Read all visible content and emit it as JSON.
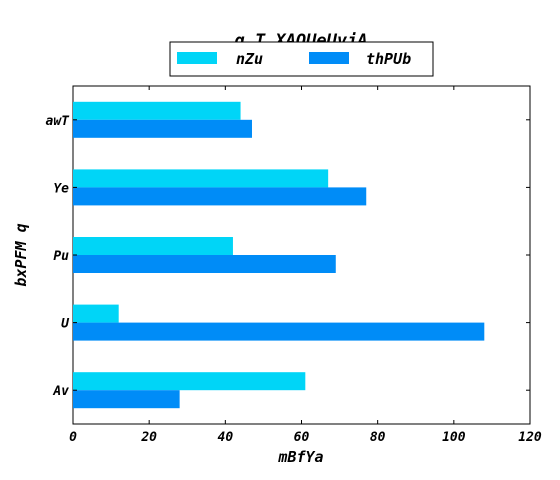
{
  "chart_data": {
    "type": "bar",
    "orientation": "horizontal",
    "title": "q_T  XAQUeUvjA",
    "xlabel": "mBfYa",
    "ylabel": "bxPFM q",
    "categories": [
      "Av",
      "U",
      "Pu",
      "Ye",
      "awT"
    ],
    "series": [
      {
        "name": "nZu",
        "color": "#00d5f7",
        "values": [
          61,
          12,
          42,
          67,
          44
        ]
      },
      {
        "name": "thPUb",
        "color": "#008cf7",
        "values": [
          28,
          108,
          69,
          77,
          47
        ]
      }
    ],
    "xlim": [
      0,
      120
    ],
    "xticks": [
      0,
      20,
      40,
      60,
      80,
      100,
      120
    ],
    "grid": false,
    "legend_position": "top-center"
  }
}
